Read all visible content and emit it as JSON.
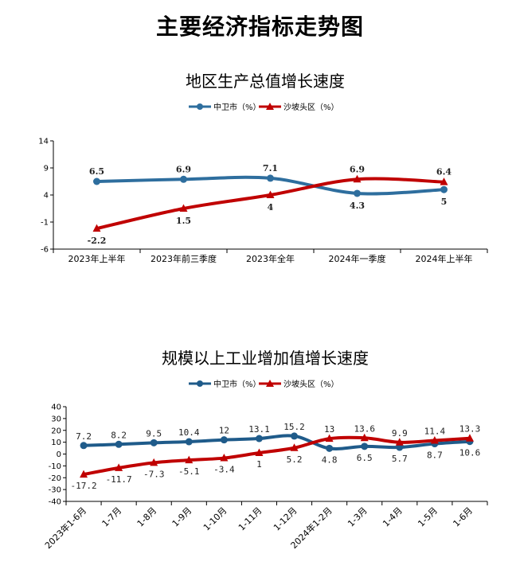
{
  "page_title": "主要经济指标走势图",
  "chart_data": [
    {
      "type": "line",
      "title": "地区生产总值增长速度",
      "categories": [
        "2023年上半年",
        "2023年前三季度",
        "2023年全年",
        "2024年一季度",
        "2024年上半年"
      ],
      "series": [
        {
          "name": "中卫市（%）",
          "color": "#2e6e9e",
          "values": [
            6.5,
            6.9,
            7.1,
            4.3,
            5.0
          ]
        },
        {
          "name": "沙坡头区（%）",
          "color": "#c00000",
          "values": [
            -2.2,
            1.5,
            4.0,
            6.9,
            6.4
          ]
        }
      ],
      "ylim": [
        -6,
        14
      ],
      "yticks": [
        -6,
        -1,
        4,
        9,
        14
      ],
      "legend": "top"
    },
    {
      "type": "line",
      "title": "规模以上工业增加值增长速度",
      "categories": [
        "2023年1-6月",
        "1-7月",
        "1-8月",
        "1-9月",
        "1-10月",
        "1-11月",
        "1-12月",
        "2024年1-2月",
        "1-3月",
        "1-4月",
        "1-5月",
        "1-6月"
      ],
      "series": [
        {
          "name": "中卫市（%）",
          "color": "#1f5b8a",
          "values": [
            7.2,
            8.2,
            9.5,
            10.4,
            12.0,
            13.1,
            15.2,
            4.8,
            6.5,
            5.7,
            8.7,
            10.6
          ]
        },
        {
          "name": "沙坡头区（%）",
          "color": "#c00000",
          "values": [
            -17.2,
            -11.7,
            -7.3,
            -5.1,
            -3.4,
            1.0,
            5.2,
            13.0,
            13.6,
            9.9,
            11.4,
            13.3
          ]
        }
      ],
      "ylim": [
        -40,
        40
      ],
      "yticks": [
        -40,
        -30,
        -20,
        -10,
        0,
        10,
        20,
        30,
        40
      ],
      "legend": "top"
    }
  ]
}
